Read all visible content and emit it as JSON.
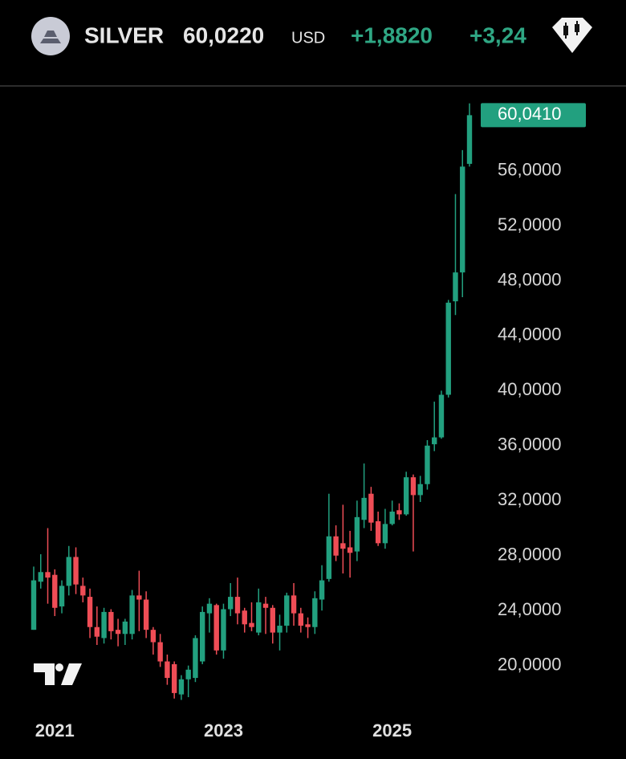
{
  "header": {
    "symbol": "SILVER",
    "price": "60,0220",
    "currency": "USD",
    "change": "+1,8820",
    "change_percent": "+3,24"
  },
  "chart_data": {
    "type": "candlestick",
    "categories": [
      null,
      null,
      null,
      "2021",
      null,
      null,
      null,
      null,
      null,
      null,
      null,
      null,
      null,
      null,
      null,
      null,
      null,
      null,
      null,
      null,
      null,
      null,
      null,
      null,
      null,
      null,
      null,
      "2023",
      null,
      null,
      null,
      null,
      null,
      null,
      null,
      null,
      null,
      null,
      null,
      null,
      null,
      null,
      null,
      null,
      null,
      null,
      null,
      null,
      null,
      null,
      null,
      "2025",
      null,
      null,
      null,
      null,
      null,
      null,
      null,
      null,
      null,
      null,
      null
    ],
    "open": [
      22.6,
      26.1,
      26.8,
      26.6,
      24.3,
      25.8,
      27.9,
      25.8,
      25.0,
      22.8,
      22.0,
      23.9,
      22.6,
      22.3,
      22.3,
      25.1,
      24.8,
      22.6,
      21.7,
      20.3,
      20.1,
      17.9,
      19.0,
      19.1,
      20.3,
      23.8,
      24.4,
      21.1,
      24.1,
      25.0,
      24.0,
      23.1,
      22.4,
      24.5,
      24.2,
      22.4,
      22.9,
      25.1,
      23.8,
      23.0,
      22.8,
      24.8,
      26.3,
      29.4,
      28.9,
      28.6,
      28.3,
      30.6,
      32.5,
      30.5,
      28.9,
      30.3,
      31.3,
      31.0,
      33.7,
      32.4,
      33.2,
      36.1,
      36.6,
      39.7,
      46.5,
      48.6,
      56.5
    ],
    "high": [
      27.2,
      28.1,
      30.0,
      27.0,
      26.2,
      28.7,
      28.6,
      26.4,
      25.6,
      24.3,
      24.2,
      24.1,
      23.4,
      23.4,
      25.5,
      26.9,
      25.4,
      22.8,
      22.3,
      20.8,
      20.3,
      19.3,
      20.0,
      22.2,
      24.3,
      24.9,
      24.5,
      24.5,
      26.0,
      26.4,
      24.2,
      24.6,
      25.6,
      25.0,
      24.4,
      23.7,
      25.3,
      26.0,
      24.2,
      23.5,
      25.4,
      27.3,
      32.5,
      30.2,
      31.7,
      29.8,
      32.0,
      34.7,
      33.0,
      31.2,
      31.4,
      32.0,
      31.8,
      34.1,
      33.9,
      33.8,
      36.4,
      39.2,
      40.0,
      46.6,
      54.3,
      57.5,
      60.9
    ],
    "low": [
      22.6,
      25.6,
      24.5,
      23.6,
      23.8,
      25.1,
      25.2,
      24.6,
      22.0,
      21.5,
      21.6,
      21.9,
      21.4,
      21.5,
      21.9,
      22.5,
      22.0,
      20.8,
      19.9,
      18.6,
      17.6,
      17.5,
      17.7,
      18.8,
      20.1,
      22.4,
      20.8,
      20.5,
      23.6,
      23.0,
      22.4,
      22.5,
      22.2,
      22.3,
      21.6,
      21.1,
      22.4,
      22.9,
      22.4,
      22.0,
      22.3,
      24.0,
      26.1,
      27.6,
      26.7,
      26.4,
      27.6,
      30.0,
      29.8,
      28.7,
      28.5,
      30.2,
      30.6,
      30.9,
      28.3,
      31.9,
      32.8,
      35.6,
      36.5,
      39.5,
      45.5,
      46.8,
      56.3
    ],
    "close": [
      26.2,
      26.8,
      26.4,
      24.2,
      25.8,
      27.9,
      25.9,
      25.1,
      22.8,
      22.1,
      23.9,
      22.5,
      22.3,
      23.2,
      25.1,
      24.8,
      22.6,
      21.7,
      20.3,
      19.1,
      18.0,
      19.0,
      19.7,
      22.0,
      23.9,
      24.5,
      21.1,
      24.1,
      25.0,
      23.8,
      23.0,
      22.8,
      24.6,
      24.2,
      22.4,
      22.9,
      25.1,
      23.8,
      22.9,
      22.8,
      24.9,
      26.2,
      29.4,
      28.0,
      28.5,
      28.2,
      30.8,
      32.2,
      30.4,
      28.9,
      30.3,
      31.2,
      31.0,
      33.7,
      32.4,
      33.2,
      36.0,
      36.6,
      39.7,
      46.4,
      48.6,
      56.3,
      60.041
    ],
    "last_label": "60,0410",
    "up_color": "#22a07f",
    "down_color": "#ef4d56",
    "ylim": [
      17.0,
      61.7
    ],
    "yticks": [
      {
        "value": 20,
        "label": "20,0000"
      },
      {
        "value": 24,
        "label": "24,0000"
      },
      {
        "value": 28,
        "label": "28,0000"
      },
      {
        "value": 32,
        "label": "32,0000"
      },
      {
        "value": 36,
        "label": "36,0000"
      },
      {
        "value": 40,
        "label": "40,0000"
      },
      {
        "value": 44,
        "label": "44,0000"
      },
      {
        "value": 48,
        "label": "48,0000"
      },
      {
        "value": 52,
        "label": "52,0000"
      },
      {
        "value": 56,
        "label": "56,0000"
      }
    ],
    "grid": false
  }
}
